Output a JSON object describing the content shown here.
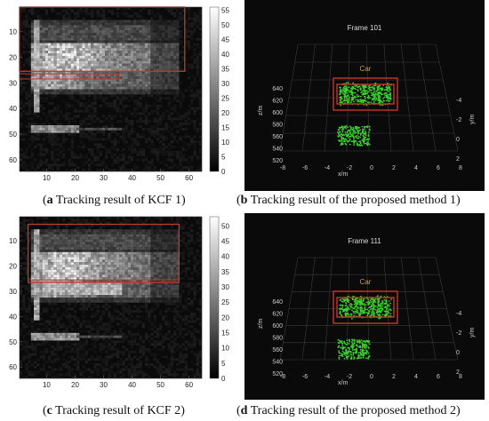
{
  "figure": {
    "panels": [
      {
        "id": "a",
        "type": "heatmap",
        "caption_letter": "a",
        "caption_text": " Tracking result of KCF 1",
        "x_ticks": [
          "10",
          "20",
          "30",
          "40",
          "50",
          "60"
        ],
        "y_ticks": [
          "10",
          "20",
          "30",
          "40",
          "50",
          "60"
        ],
        "colorbar_ticks": [
          "55",
          "50",
          "45",
          "40",
          "35",
          "30",
          "25",
          "20",
          "15",
          "10",
          "5",
          "0"
        ]
      },
      {
        "id": "b",
        "type": "3d-scatter",
        "caption_letter": "b",
        "caption_text": " Tracking result of the proposed method 1",
        "title": "Frame 101",
        "box_label": "Car",
        "z_label": "z/m",
        "x_label": "x/m",
        "y_label": "y/m",
        "z_ticks": [
          "640",
          "620",
          "600",
          "580",
          "560",
          "540",
          "520"
        ],
        "x_ticks": [
          "-8",
          "-6",
          "-4",
          "-2",
          "0",
          "2",
          "4",
          "6",
          "8"
        ],
        "y_ticks": [
          "-4",
          "-2",
          "0",
          "2"
        ]
      },
      {
        "id": "c",
        "type": "heatmap",
        "caption_letter": "c",
        "caption_text": " Tracking result of KCF 2",
        "x_ticks": [
          "10",
          "20",
          "30",
          "40",
          "50",
          "60"
        ],
        "y_ticks": [
          "10",
          "20",
          "30",
          "40",
          "50",
          "60"
        ],
        "colorbar_ticks": [
          "50",
          "45",
          "40",
          "35",
          "30",
          "25",
          "20",
          "15",
          "10",
          "5",
          "0"
        ]
      },
      {
        "id": "d",
        "type": "3d-scatter",
        "caption_letter": "d",
        "caption_text": " Tracking result of the proposed method 2",
        "title": "Frame 111",
        "box_label": "Car",
        "z_label": "z/m",
        "x_label": "x/m",
        "y_label": "y/m",
        "z_ticks": [
          "640",
          "620",
          "600",
          "580",
          "560",
          "540",
          "520"
        ],
        "x_ticks": [
          "-8",
          "-6",
          "-4",
          "-2",
          "0",
          "2",
          "4",
          "6",
          "8"
        ],
        "y_ticks": [
          "-4",
          "-2",
          "0",
          "2"
        ]
      }
    ],
    "colors": {
      "track_box": "#c0392b",
      "box_label": "#d4a017",
      "points": "#39d42a",
      "dark_bg": "#0a0a0a"
    }
  }
}
